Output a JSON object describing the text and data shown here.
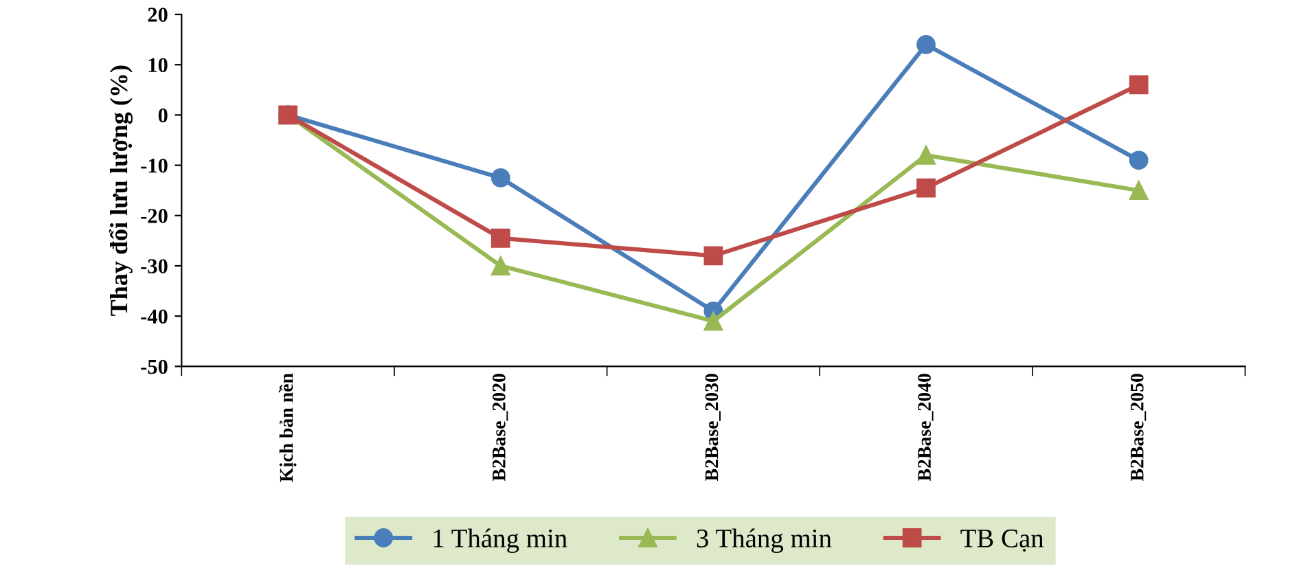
{
  "chart_data": {
    "type": "line",
    "ylabel": "Thay đổi lưu lượng (%)",
    "categories": [
      "Kịch bản nền",
      "B2Base_2020",
      "B2Base_2030",
      "B2Base_2040",
      "B2Base_2050"
    ],
    "series": [
      {
        "name": "1 Tháng min",
        "color": "#4a7ebb",
        "marker": "circle",
        "values": [
          0,
          -12.5,
          -39,
          14,
          -9
        ]
      },
      {
        "name": "3 Tháng min",
        "color": "#98b954",
        "marker": "triangle",
        "values": [
          0,
          -30,
          -41,
          -8,
          -15
        ]
      },
      {
        "name": "TB Cạn",
        "color": "#be4b48",
        "marker": "square",
        "values": [
          0,
          -24.5,
          -28,
          -14.5,
          6
        ]
      }
    ],
    "ylim": [
      -50,
      20
    ],
    "yticks": [
      -50,
      -40,
      -30,
      -20,
      -10,
      0,
      10,
      20
    ],
    "grid": false,
    "legend": "bottom"
  }
}
